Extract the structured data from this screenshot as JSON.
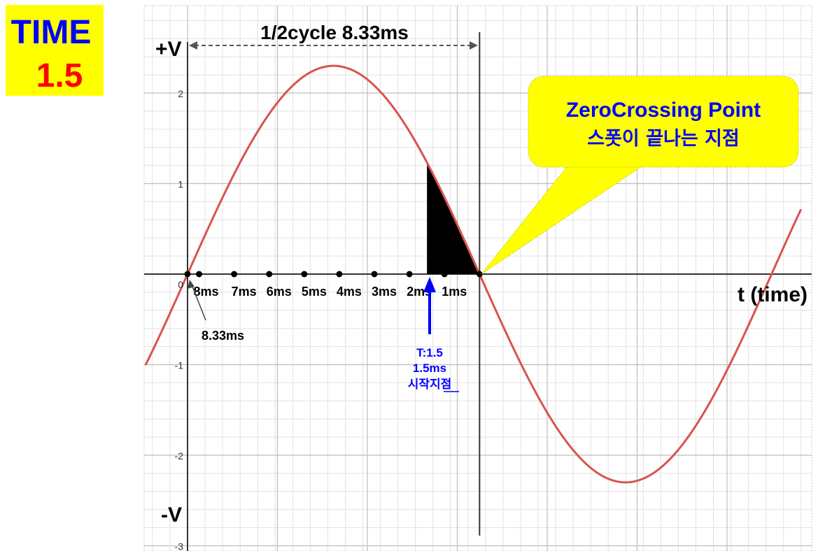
{
  "badge": {
    "title": "TIME",
    "value": "1.5"
  },
  "header": {
    "half_cycle": "1/2cycle 8.33ms"
  },
  "axes": {
    "y_pos": "+V",
    "y_neg": "-V",
    "x_label": "t (time)",
    "y_ticks": [
      {
        "v": 2,
        "label": "2"
      },
      {
        "v": 1,
        "label": "1"
      },
      {
        "v": 0,
        "label": "0"
      },
      {
        "v": -1,
        "label": "-1"
      },
      {
        "v": -2,
        "label": "-2"
      },
      {
        "v": -3,
        "label": "-3"
      }
    ]
  },
  "markers": [
    {
      "x": 0.0,
      "label": ""
    },
    {
      "x": 0.33,
      "label": "8ms"
    },
    {
      "x": 1.33,
      "label": "7ms"
    },
    {
      "x": 2.33,
      "label": "6ms"
    },
    {
      "x": 3.33,
      "label": "5ms"
    },
    {
      "x": 4.33,
      "label": "4ms"
    },
    {
      "x": 5.33,
      "label": "3ms"
    },
    {
      "x": 6.33,
      "label": "2ms"
    },
    {
      "x": 7.33,
      "label": "1ms"
    },
    {
      "x": 8.33,
      "label": ""
    }
  ],
  "callouts": {
    "start_arrow": {
      "lines": [
        "T:1.5",
        "1.5ms",
        "시작지점"
      ]
    },
    "origin_note": "8.33ms",
    "zero_crossing": {
      "line1": "ZeroCrossing Point",
      "line2": "스폿이 끝나는 지점"
    }
  },
  "chart_data": {
    "type": "line",
    "title": "1/2cycle 8.33ms",
    "xlabel": "t (time)",
    "ylabel": "",
    "ylim": [
      -3,
      2.5
    ],
    "series": [
      {
        "function": "2.3*sin(pi*(x - 0.0)/8.33)",
        "x_range": [
          -1.2,
          17.5
        ]
      }
    ],
    "shaded_segment": {
      "x_range": [
        6.83,
        8.33
      ],
      "fill": "#000000"
    },
    "half_cycle_span": [
      0.0,
      8.33
    ],
    "grid": true
  },
  "colors": {
    "curve": "#d9534f",
    "grid_major": "#bdbdbd",
    "grid_minor": "#e2e2e2",
    "axis": "#333333",
    "callout_bg": "#ffff00",
    "blue": "#0000ff",
    "red": "#ff0000"
  }
}
